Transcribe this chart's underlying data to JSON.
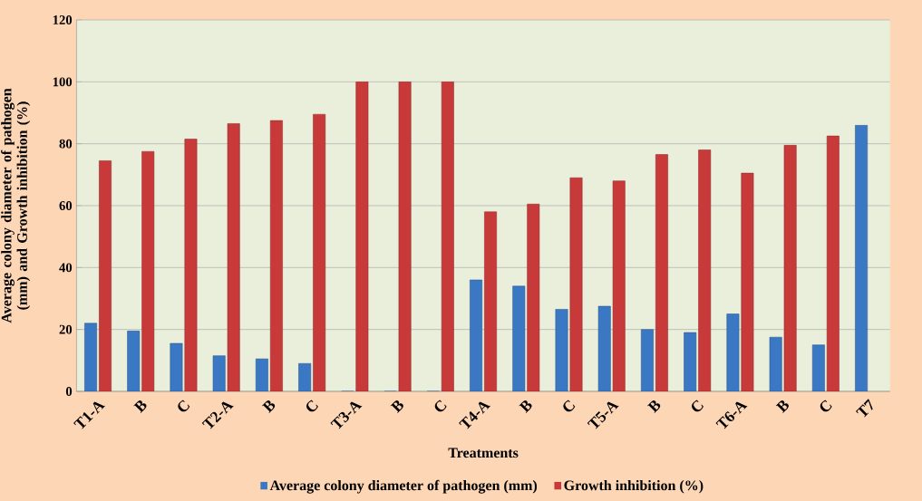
{
  "chart_data": {
    "type": "bar",
    "xlabel": "Treatments",
    "ylabel": "Average colony diameter of pathogen (mm) and Growth inhibition (%)",
    "categories": [
      "T1-A",
      "B",
      "C",
      "T2-A",
      "B",
      "C",
      "T3-A",
      "B",
      "C",
      "T4-A",
      "B",
      "C",
      "T5-A",
      "B",
      "C",
      "T6-A",
      "B",
      "C",
      "T7"
    ],
    "series": [
      {
        "name": "Average colony diameter of pathogen (mm)",
        "color": "#3a78c4",
        "values": [
          22,
          19.5,
          15.5,
          11.5,
          10.5,
          9,
          0,
          0,
          0,
          36,
          34,
          26.5,
          27.5,
          20,
          19,
          25,
          17.5,
          15,
          86
        ]
      },
      {
        "name": "Growth inhibition (%)",
        "color": "#c83a3a",
        "values": [
          74.5,
          77.5,
          81.5,
          86.5,
          87.5,
          89.5,
          100,
          100,
          100,
          58,
          60.5,
          69,
          68,
          76.5,
          78,
          70.5,
          79.5,
          82.5,
          null
        ]
      }
    ],
    "ylim": [
      0,
      120
    ],
    "yticks": [
      0,
      20,
      40,
      60,
      80,
      100,
      120
    ],
    "grid": "y",
    "legend": "bottom"
  }
}
